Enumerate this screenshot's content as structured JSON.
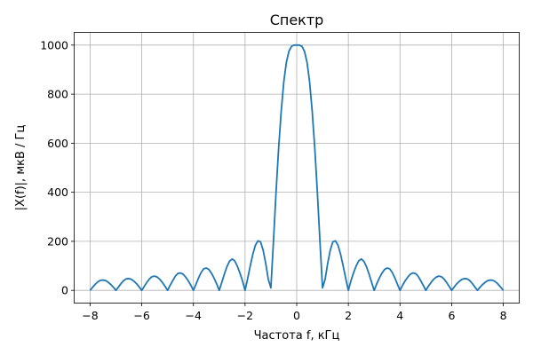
{
  "chart_data": {
    "type": "line",
    "title": "Спектр",
    "xlabel": "Частота f, кГц",
    "ylabel": "|X(f)|,  мкВ / Гц",
    "xlim": [
      -8.6,
      8.6
    ],
    "ylim": [
      -50,
      1050
    ],
    "xticks": [
      -8,
      -6,
      -4,
      -2,
      0,
      2,
      4,
      6,
      8
    ],
    "xtick_labels": [
      "−8",
      "−6",
      "−4",
      "−2",
      "0",
      "2",
      "4",
      "6",
      "8"
    ],
    "yticks": [
      0,
      200,
      400,
      600,
      800,
      1000
    ],
    "ytick_labels": [
      "0",
      "200",
      "400",
      "600",
      "800",
      "1000"
    ],
    "grid": true,
    "series": [
      {
        "color": "#1f77b4",
        "x": [
          -8.0,
          -7.9,
          -7.8,
          -7.7,
          -7.6,
          -7.5,
          -7.4,
          -7.3,
          -7.2,
          -7.1,
          -7.0,
          -6.9,
          -6.8,
          -6.7,
          -6.6,
          -6.5,
          -6.4,
          -6.3,
          -6.2,
          -6.1,
          -6.0,
          -5.9,
          -5.8,
          -5.7,
          -5.6,
          -5.5,
          -5.4,
          -5.3,
          -5.2,
          -5.1,
          -5.0,
          -4.9,
          -4.8,
          -4.7,
          -4.6,
          -4.5,
          -4.4,
          -4.3,
          -4.2,
          -4.1,
          -4.0,
          -3.9,
          -3.8,
          -3.7,
          -3.6,
          -3.5,
          -3.4,
          -3.3,
          -3.2,
          -3.1,
          -3.0,
          -2.9,
          -2.8,
          -2.7,
          -2.6,
          -2.5,
          -2.4,
          -2.3,
          -2.2,
          -2.1,
          -2.0,
          -1.9,
          -1.8,
          -1.7,
          -1.6,
          -1.5,
          -1.4,
          -1.3,
          -1.2,
          -1.1,
          -1.0,
          -0.9,
          -0.8,
          -0.7,
          -0.6,
          -0.5,
          -0.4,
          -0.3,
          -0.2,
          -0.1,
          0.0,
          0.1,
          0.2,
          0.3,
          0.4,
          0.5,
          0.6,
          0.7,
          0.8,
          0.9,
          1.0,
          1.1,
          1.2,
          1.3,
          1.4,
          1.5,
          1.6,
          1.7,
          1.8,
          1.9,
          2.0,
          2.1,
          2.2,
          2.3,
          2.4,
          2.5,
          2.6,
          2.7,
          2.8,
          2.9,
          3.0,
          3.1,
          3.2,
          3.3,
          3.4,
          3.5,
          3.6,
          3.7,
          3.8,
          3.9,
          4.0,
          4.1,
          4.2,
          4.3,
          4.4,
          4.5,
          4.6,
          4.7,
          4.8,
          4.9,
          5.0,
          5.1,
          5.2,
          5.3,
          5.4,
          5.5,
          5.6,
          5.7,
          5.8,
          5.9,
          6.0,
          6.1,
          6.2,
          6.3,
          6.4,
          6.5,
          6.6,
          6.7,
          6.8,
          6.9,
          7.0,
          7.1,
          7.2,
          7.3,
          7.4,
          7.5,
          7.6,
          7.7,
          7.8,
          7.9,
          8.0
        ],
        "y": [
          0,
          13,
          25,
          35,
          41,
          42,
          40,
          33,
          24,
          13,
          0,
          14,
          28,
          40,
          47,
          48,
          45,
          37,
          27,
          14,
          0,
          17,
          33,
          47,
          56,
          58,
          54,
          45,
          32,
          17,
          0,
          21,
          40,
          58,
          69,
          71,
          66,
          54,
          39,
          21,
          0,
          25,
          51,
          73,
          88,
          91,
          85,
          70,
          50,
          27,
          0,
          33,
          67,
          97,
          119,
          128,
          120,
          99,
          71,
          39,
          0,
          48,
          99,
          147,
          184,
          202,
          198,
          164,
          110,
          45,
          10,
          200,
          400,
          580,
          730,
          850,
          930,
          975,
          995,
          1000,
          1000,
          1000,
          995,
          975,
          930,
          850,
          730,
          580,
          400,
          200,
          10,
          45,
          110,
          164,
          198,
          202,
          184,
          147,
          99,
          48,
          0,
          39,
          71,
          99,
          120,
          128,
          119,
          97,
          67,
          33,
          0,
          27,
          50,
          70,
          85,
          91,
          88,
          73,
          51,
          25,
          0,
          21,
          39,
          54,
          66,
          71,
          69,
          58,
          40,
          21,
          0,
          17,
          32,
          45,
          54,
          58,
          56,
          47,
          33,
          17,
          0,
          14,
          27,
          37,
          45,
          48,
          47,
          40,
          28,
          14,
          0,
          13,
          24,
          33,
          40,
          42,
          41,
          35,
          25,
          13,
          0
        ]
      }
    ]
  }
}
